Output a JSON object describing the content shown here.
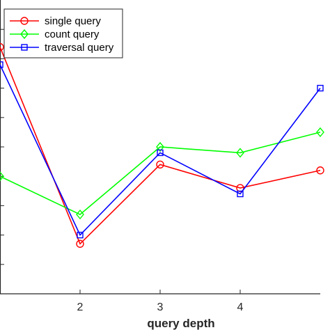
{
  "chart_data": {
    "type": "line",
    "title": "",
    "xlabel": "query depth",
    "ylabel": "",
    "x": [
      1,
      2,
      3,
      4,
      5
    ],
    "xticks": [
      "2",
      "3",
      "4"
    ],
    "xlim": [
      1,
      5
    ],
    "ylim": [
      0,
      10
    ],
    "yticks": [
      1,
      2,
      3,
      4,
      5,
      6,
      7,
      8,
      9
    ],
    "grid": false,
    "legend_position": "top-left",
    "series": [
      {
        "name": "single query",
        "color": "#ff0000",
        "marker": "circle",
        "values": [
          8.4,
          1.7,
          4.4,
          3.6,
          4.2
        ]
      },
      {
        "name": "count query",
        "color": "#00ff00",
        "marker": "diamond",
        "values": [
          4.0,
          2.7,
          5.0,
          4.8,
          5.5
        ]
      },
      {
        "name": "traversal query",
        "color": "#0000ff",
        "marker": "square",
        "values": [
          7.8,
          2.0,
          4.8,
          3.4,
          7.0
        ]
      }
    ]
  }
}
